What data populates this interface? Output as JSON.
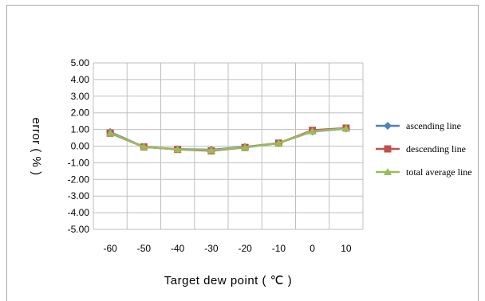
{
  "chart_data": {
    "type": "line",
    "title": "",
    "xlabel": "Target dew point ( ℃ )",
    "ylabel": "error ( % )",
    "categories": [
      "-60",
      "-50",
      "-40",
      "-30",
      "-20",
      "-10",
      "0",
      "10"
    ],
    "ylim": [
      -5,
      5
    ],
    "ytick_step": 1,
    "ytick_labels": [
      "-5.00",
      "-4.00",
      "-3.00",
      "-2.00",
      "-1.00",
      "0.00",
      "1.00",
      "2.00",
      "3.00",
      "4.00",
      "5.00"
    ],
    "grid": true,
    "legend_position": "right",
    "series": [
      {
        "name": "ascending line",
        "color": "#4f81bd",
        "marker": "diamond",
        "values": [
          0.85,
          -0.05,
          -0.18,
          -0.22,
          -0.05,
          0.18,
          0.88,
          1.05
        ]
      },
      {
        "name": "descending line",
        "color": "#c0504d",
        "marker": "square",
        "values": [
          0.78,
          -0.05,
          -0.2,
          -0.28,
          -0.08,
          0.18,
          0.95,
          1.08
        ]
      },
      {
        "name": "total average line",
        "color": "#9bbb59",
        "marker": "triangle",
        "values": [
          0.8,
          -0.05,
          -0.19,
          -0.25,
          -0.07,
          0.18,
          0.9,
          1.06
        ]
      }
    ]
  }
}
